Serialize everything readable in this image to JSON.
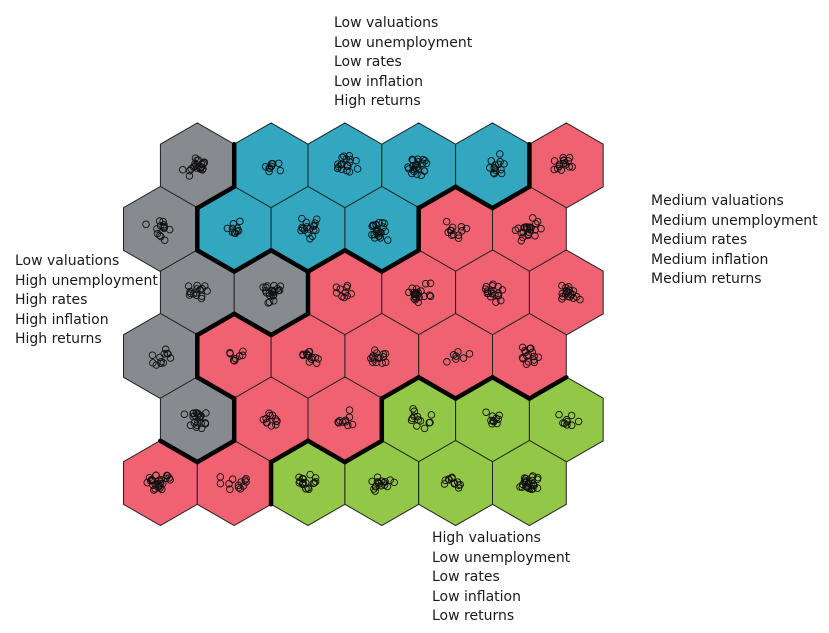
{
  "diagram": {
    "type": "self-organizing-map",
    "cluster_colors": {
      "teal": "#33a6c0",
      "grey": "#878b8f",
      "red": "#f06272",
      "green": "#93c747"
    },
    "rows": [
      [
        "grey",
        "teal",
        "teal",
        "teal",
        "teal",
        "red"
      ],
      [
        "grey",
        "teal",
        "teal",
        "teal",
        "red",
        "red"
      ],
      [
        "grey",
        "grey",
        "red",
        "red",
        "red",
        "red"
      ],
      [
        "grey",
        "red",
        "red",
        "red",
        "red",
        "red"
      ],
      [
        "grey",
        "red",
        "red",
        "green",
        "green",
        "green"
      ],
      [
        "red",
        "red",
        "green",
        "green",
        "green",
        "green"
      ]
    ],
    "samples_per_cell": [
      [
        22,
        9,
        18,
        24,
        14,
        16
      ],
      [
        14,
        10,
        17,
        24,
        12,
        24
      ],
      [
        16,
        22,
        10,
        22,
        18,
        20
      ],
      [
        12,
        8,
        14,
        15,
        7,
        16
      ],
      [
        22,
        12,
        10,
        13,
        10,
        9
      ],
      [
        28,
        13,
        19,
        17,
        12,
        26
      ]
    ]
  },
  "cluster_labels": {
    "teal": [
      "Low valuations",
      "Low unemployment",
      "Low rates",
      "Low inflation",
      "High returns"
    ],
    "red": [
      "Medium valuations",
      "Medium unemployment",
      "Medium rates",
      "Medium inflation",
      "Medium returns"
    ],
    "grey": [
      "Low valuations",
      "High unemployment",
      "High rates",
      "High inflation",
      "High returns"
    ],
    "green": [
      "High valuations",
      "Low unemployment",
      "Low rates",
      "Low inflation",
      "Low returns"
    ]
  }
}
